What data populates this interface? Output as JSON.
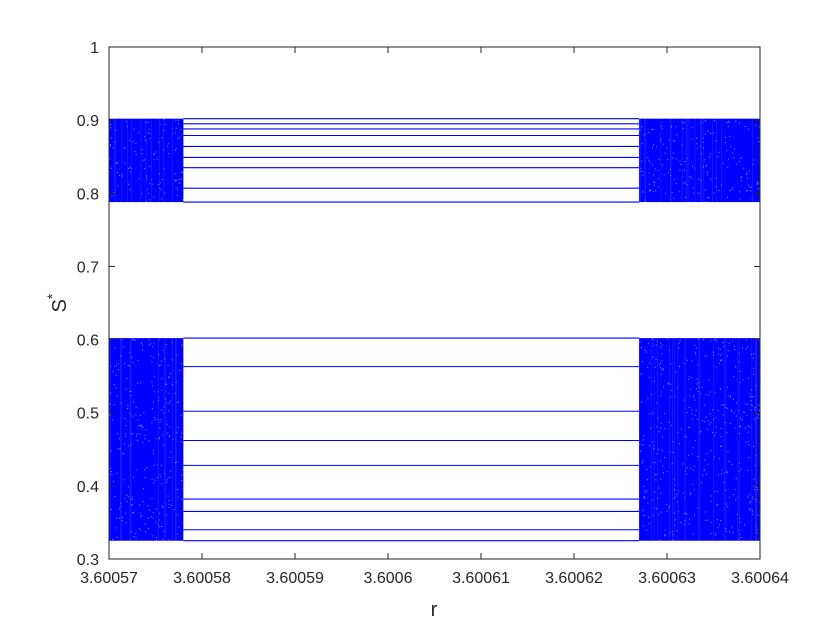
{
  "chart_data": {
    "type": "scatter",
    "title": "",
    "xlabel": "r",
    "ylabel": {
      "base": "S",
      "superscript": "*"
    },
    "xlim": [
      3.60057,
      3.60064
    ],
    "ylim": [
      0.3,
      1.0
    ],
    "xticks": [
      3.60057,
      3.60058,
      3.60059,
      3.6006,
      3.60061,
      3.60062,
      3.60063,
      3.60064
    ],
    "xtick_labels": [
      "3.60057",
      "3.60058",
      "3.60059",
      "3.6006",
      "3.60061",
      "3.60062",
      "3.60063",
      "3.60064"
    ],
    "yticks": [
      0.3,
      0.4,
      0.5,
      0.6,
      0.7,
      0.8,
      0.9,
      1.0
    ],
    "ytick_labels": [
      "0.3",
      "0.4",
      "0.5",
      "0.6",
      "0.7",
      "0.8",
      "0.9",
      "1"
    ],
    "grid": false,
    "marker_color": "#0000ff",
    "chaotic_regions": [
      {
        "r_range": [
          3.60057,
          3.600578
        ],
        "bands": [
          [
            0.325,
            0.602
          ],
          [
            0.788,
            0.902
          ]
        ]
      },
      {
        "r_range": [
          3.600627,
          3.60064
        ],
        "bands": [
          [
            0.325,
            0.602
          ],
          [
            0.788,
            0.902
          ]
        ]
      }
    ],
    "periodic_window": {
      "r_range": [
        3.600578,
        3.600627
      ],
      "s_values": [
        0.325,
        0.34,
        0.365,
        0.382,
        0.428,
        0.462,
        0.502,
        0.563,
        0.602,
        0.788,
        0.807,
        0.835,
        0.849,
        0.864,
        0.879,
        0.888,
        0.895,
        0.902
      ]
    }
  }
}
